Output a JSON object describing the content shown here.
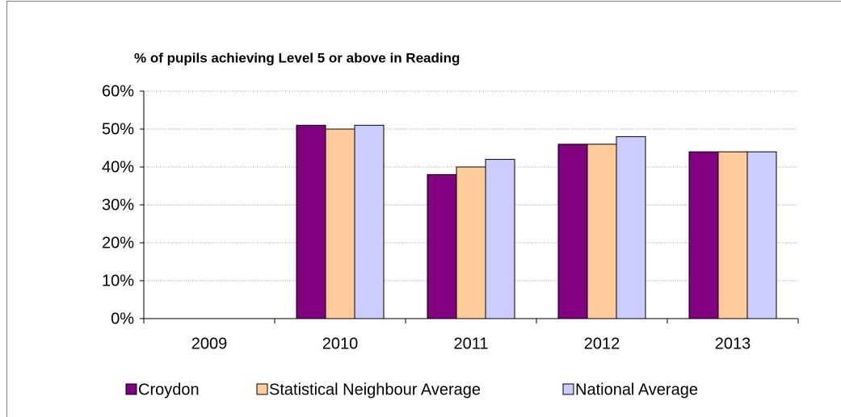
{
  "chart_data": {
    "type": "bar",
    "title": "% of pupils achieving Level 5 or above in Reading",
    "categories": [
      "2009",
      "2010",
      "2011",
      "2012",
      "2013"
    ],
    "series": [
      {
        "name": "Croydon",
        "color": "#800080",
        "values": [
          null,
          51,
          38,
          46,
          44
        ]
      },
      {
        "name": "Statistical Neighbour Average",
        "color": "#FFCC99",
        "values": [
          null,
          50,
          40,
          46,
          44
        ]
      },
      {
        "name": "National Average",
        "color": "#CCCCFF",
        "values": [
          null,
          51,
          42,
          48,
          44
        ]
      }
    ],
    "ylim": [
      0,
      60
    ],
    "yticks": [
      {
        "value": 0,
        "label": "0%"
      },
      {
        "value": 10,
        "label": "10%"
      },
      {
        "value": 20,
        "label": "20%"
      },
      {
        "value": 30,
        "label": "30%"
      },
      {
        "value": 40,
        "label": "40%"
      },
      {
        "value": 50,
        "label": "50%"
      },
      {
        "value": 60,
        "label": "60%"
      }
    ],
    "grid": true,
    "legend": "bottom"
  }
}
